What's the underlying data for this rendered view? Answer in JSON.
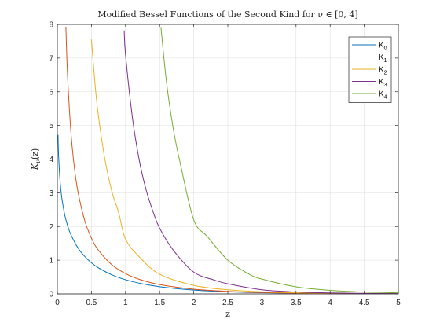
{
  "chart_data": {
    "type": "line",
    "title": "Modified Bessel Functions of the Second Kind for ν ∈ [0, 4]",
    "xlabel": "z",
    "ylabel": "K_ν(z)",
    "xlim": [
      0,
      5
    ],
    "ylim": [
      0,
      8
    ],
    "xticks": [
      "0",
      "0.5",
      "1",
      "1.5",
      "2",
      "2.5",
      "3",
      "3.5",
      "4",
      "4.5",
      "5"
    ],
    "yticks": [
      "0",
      "1",
      "2",
      "3",
      "4",
      "5",
      "6",
      "7",
      "8"
    ],
    "grid": true,
    "legend_position": "top-right",
    "series": [
      {
        "name": "K0",
        "label_main": "K",
        "label_sub": "0",
        "color": "#0072BD",
        "x": [
          0.01,
          0.02,
          0.05,
          0.1,
          0.15,
          0.2,
          0.3,
          0.4,
          0.5,
          0.6,
          0.8,
          1.0,
          1.2,
          1.5,
          2.0,
          2.5,
          3.0,
          3.5,
          4.0,
          4.5,
          5.0
        ],
        "y": [
          4.721,
          4.028,
          3.114,
          2.427,
          2.03,
          1.753,
          1.372,
          1.115,
          0.924,
          0.778,
          0.565,
          0.421,
          0.319,
          0.214,
          0.114,
          0.062,
          0.035,
          0.02,
          0.011,
          0.0064,
          0.0037
        ]
      },
      {
        "name": "K1",
        "label_main": "K",
        "label_sub": "1",
        "color": "#D95319",
        "x": [
          0.125,
          0.15,
          0.2,
          0.25,
          0.3,
          0.4,
          0.5,
          0.6,
          0.8,
          1.0,
          1.2,
          1.5,
          2.0,
          2.5,
          3.0,
          3.5,
          4.0,
          4.5,
          5.0
        ],
        "y": [
          7.93,
          6.48,
          4.776,
          3.747,
          3.056,
          2.184,
          1.656,
          1.303,
          0.862,
          0.602,
          0.435,
          0.277,
          0.14,
          0.0739,
          0.0402,
          0.0222,
          0.0125,
          0.0071,
          0.004
        ]
      },
      {
        "name": "K2",
        "label_main": "K",
        "label_sub": "2",
        "color": "#EDB120",
        "x": [
          0.5,
          0.55,
          0.6,
          0.7,
          0.8,
          0.9,
          1.0,
          1.2,
          1.5,
          2.0,
          2.5,
          3.0,
          3.5,
          4.0,
          4.5,
          5.0
        ],
        "y": [
          7.55,
          6.295,
          5.323,
          3.963,
          3.036,
          2.405,
          1.625,
          1.104,
          0.584,
          0.254,
          0.121,
          0.0615,
          0.0325,
          0.0174,
          0.0097,
          0.0053
        ]
      },
      {
        "name": "K3",
        "label_main": "K",
        "label_sub": "3",
        "color": "#7E2F8E",
        "x": [
          0.98,
          1.0,
          1.1,
          1.2,
          1.3,
          1.4,
          1.5,
          1.7,
          2.0,
          2.3,
          2.5,
          3.0,
          3.5,
          4.0,
          4.5,
          5.0
        ],
        "y": [
          7.82,
          7.1,
          5.25,
          3.98,
          3.1,
          2.46,
          1.95,
          1.3,
          0.647,
          0.412,
          0.301,
          0.122,
          0.0575,
          0.0298,
          0.0148,
          0.0083
        ]
      },
      {
        "name": "K4",
        "label_main": "K",
        "label_sub": "4",
        "color": "#77AC30",
        "x": [
          1.52,
          1.6,
          1.7,
          1.8,
          2.0,
          2.2,
          2.5,
          2.8,
          3.0,
          3.5,
          4.0,
          4.5,
          5.0
        ],
        "y": [
          7.9,
          6.3,
          4.9,
          3.9,
          2.2,
          1.7,
          1.0,
          0.6,
          0.44,
          0.21,
          0.105,
          0.055,
          0.03
        ]
      }
    ]
  }
}
